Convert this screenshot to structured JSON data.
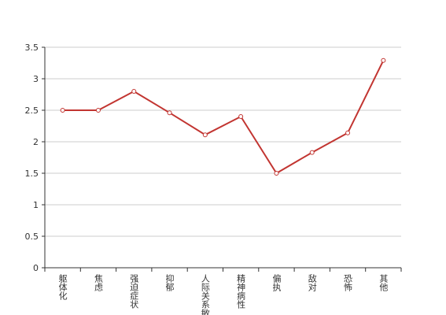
{
  "chart_data": {
    "type": "line",
    "categories": [
      "躯体化",
      "焦虑",
      "强迫症状",
      "抑郁",
      "人际关系敏感",
      "精神病性",
      "偏执",
      "敌对",
      "恐怖",
      "其他"
    ],
    "series": [
      {
        "color": "#c23531",
        "values": [
          2.5,
          2.5,
          2.8,
          2.46,
          2.11,
          2.4,
          1.5,
          1.83,
          2.14,
          3.29
        ]
      }
    ],
    "ylim": [
      0,
      3.5
    ],
    "yticks": [
      0,
      0.5,
      1,
      1.5,
      2,
      2.5,
      3,
      3.5
    ],
    "grid": true
  }
}
